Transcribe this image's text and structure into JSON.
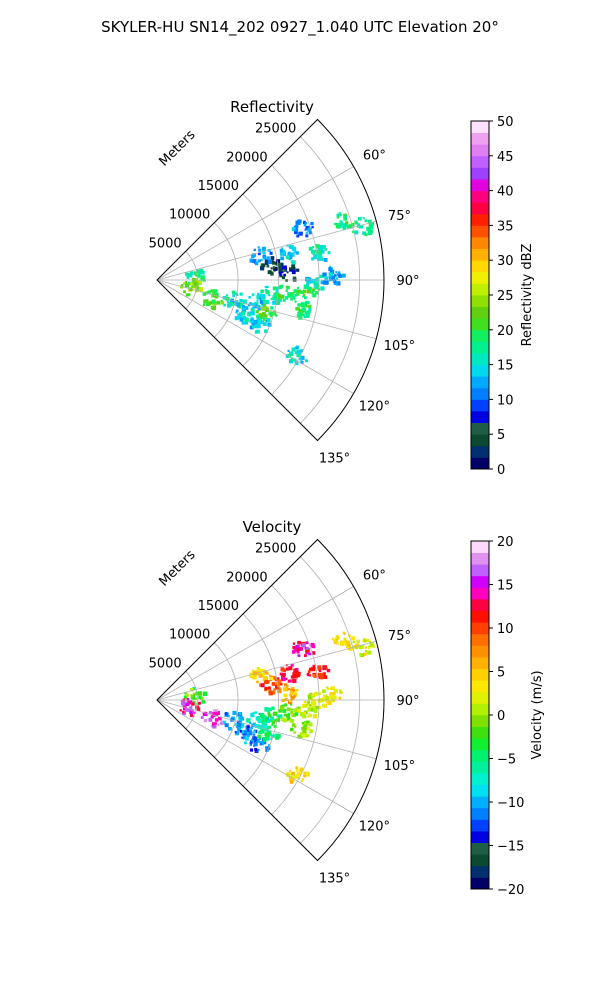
{
  "figure": {
    "title": "SKYLER-HU  SN14_202  0927_1.040 UTC Elevation 20°"
  },
  "chart_data": [
    {
      "type": "heatmap",
      "subtype": "polar-sector",
      "title": "Reflectivity",
      "radial_axis_label": "Meters",
      "r_ticks": [
        5000,
        10000,
        15000,
        20000,
        25000
      ],
      "r_tick_labels": [
        "5000",
        "10000",
        "15000",
        "20000",
        "25000"
      ],
      "r_max": 28000,
      "theta_range_deg": [
        45,
        135
      ],
      "theta_ticks_deg": [
        60,
        75,
        90,
        105,
        120,
        135
      ],
      "theta_tick_labels": [
        "60°",
        "75°",
        "90°",
        "105°",
        "120°",
        "135°"
      ],
      "grid": true,
      "colorbar": {
        "label": "Reflectivity dBZ",
        "range": [
          0,
          50
        ],
        "ticks": [
          0,
          5,
          10,
          15,
          20,
          25,
          30,
          35,
          40,
          45,
          50
        ],
        "tick_labels": [
          "0",
          "5",
          "10",
          "15",
          "20",
          "25",
          "30",
          "35",
          "40",
          "45",
          "50"
        ],
        "colors": [
          "#000066",
          "#003070",
          "#0a4a30",
          "#1e5e46",
          "#0000e0",
          "#0040ff",
          "#0080ff",
          "#00aaff",
          "#00d8f0",
          "#00e8c0",
          "#00f090",
          "#10f060",
          "#40e020",
          "#60d010",
          "#90e000",
          "#c0f000",
          "#eef000",
          "#ffd800",
          "#ffb000",
          "#ff8800",
          "#ff5000",
          "#ff2000",
          "#ff0040",
          "#ff0080",
          "#e000e0",
          "#a040ff",
          "#c060ff",
          "#e080f0",
          "#f0a0f0",
          "#fce0fc"
        ]
      },
      "echoes": [
        {
          "theta_deg": 108,
          "r_m": 7000,
          "value": 21
        },
        {
          "theta_deg": 104,
          "r_m": 9500,
          "value": 16
        },
        {
          "theta_deg": 101,
          "r_m": 12500,
          "value": 14
        },
        {
          "theta_deg": 97,
          "r_m": 14000,
          "value": 17
        },
        {
          "theta_deg": 95,
          "r_m": 16000,
          "value": 19
        },
        {
          "theta_deg": 93,
          "r_m": 18500,
          "value": 20
        },
        {
          "theta_deg": 90,
          "r_m": 19500,
          "value": 14
        },
        {
          "theta_deg": 88,
          "r_m": 21500,
          "value": 13
        },
        {
          "theta_deg": 86,
          "r_m": 16000,
          "value": 6
        },
        {
          "theta_deg": 82,
          "r_m": 14000,
          "value": 4
        },
        {
          "theta_deg": 76,
          "r_m": 13000,
          "value": 12
        },
        {
          "theta_deg": 78,
          "r_m": 16500,
          "value": 15
        },
        {
          "theta_deg": 80,
          "r_m": 20000,
          "value": 16
        },
        {
          "theta_deg": 83,
          "r_m": 4500,
          "value": 18
        },
        {
          "theta_deg": 100,
          "r_m": 4000,
          "value": 24
        },
        {
          "theta_deg": 111,
          "r_m": 11500,
          "value": 15
        },
        {
          "theta_deg": 113,
          "r_m": 13500,
          "value": 13
        },
        {
          "theta_deg": 106,
          "r_m": 14000,
          "value": 21
        },
        {
          "theta_deg": 101,
          "r_m": 18000,
          "value": 18
        },
        {
          "theta_deg": 70,
          "r_m": 19000,
          "value": 12
        },
        {
          "theta_deg": 72,
          "r_m": 24000,
          "value": 18
        },
        {
          "theta_deg": 75,
          "r_m": 26000,
          "value": 18
        },
        {
          "theta_deg": 118,
          "r_m": 19500,
          "value": 15
        }
      ]
    },
    {
      "type": "heatmap",
      "subtype": "polar-sector",
      "title": "Velocity",
      "radial_axis_label": "Meters",
      "r_ticks": [
        5000,
        10000,
        15000,
        20000,
        25000
      ],
      "r_tick_labels": [
        "5000",
        "10000",
        "15000",
        "20000",
        "25000"
      ],
      "r_max": 28000,
      "theta_range_deg": [
        45,
        135
      ],
      "theta_ticks_deg": [
        60,
        75,
        90,
        105,
        120,
        135
      ],
      "theta_tick_labels": [
        "60°",
        "75°",
        "90°",
        "105°",
        "120°",
        "135°"
      ],
      "grid": true,
      "colorbar": {
        "label": "Velocity (m/s)",
        "range": [
          -20,
          20
        ],
        "ticks": [
          -20,
          -15,
          -10,
          -5,
          0,
          5,
          10,
          15,
          20
        ],
        "tick_labels": [
          "−20",
          "−15",
          "−10",
          "−5",
          "0",
          "5",
          "10",
          "15",
          "20"
        ],
        "colors": [
          "#000066",
          "#003070",
          "#0a4a30",
          "#1e5e46",
          "#0000e0",
          "#0040ff",
          "#0080ff",
          "#00b0ff",
          "#00e0f0",
          "#00f0d0",
          "#00f0a0",
          "#00f070",
          "#10f030",
          "#40e010",
          "#80e000",
          "#b0f000",
          "#e0f000",
          "#ffe800",
          "#ffd000",
          "#ffb000",
          "#ff9000",
          "#ff7000",
          "#ff4000",
          "#ff1000",
          "#ff0040",
          "#ff00c0",
          "#d000ff",
          "#c060ff",
          "#e090f0",
          "#fcd8fc"
        ]
      },
      "echoes": [
        {
          "theta_deg": 108,
          "r_m": 7000,
          "value": 16
        },
        {
          "theta_deg": 104,
          "r_m": 9500,
          "value": -10
        },
        {
          "theta_deg": 101,
          "r_m": 12500,
          "value": -8
        },
        {
          "theta_deg": 97,
          "r_m": 14000,
          "value": -4
        },
        {
          "theta_deg": 95,
          "r_m": 16000,
          "value": -1
        },
        {
          "theta_deg": 93,
          "r_m": 18500,
          "value": 1
        },
        {
          "theta_deg": 90,
          "r_m": 19500,
          "value": 2
        },
        {
          "theta_deg": 88,
          "r_m": 21500,
          "value": 3
        },
        {
          "theta_deg": 86,
          "r_m": 16000,
          "value": 6
        },
        {
          "theta_deg": 82,
          "r_m": 14000,
          "value": 10
        },
        {
          "theta_deg": 76,
          "r_m": 13000,
          "value": 4
        },
        {
          "theta_deg": 78,
          "r_m": 16500,
          "value": 12
        },
        {
          "theta_deg": 80,
          "r_m": 20000,
          "value": 11
        },
        {
          "theta_deg": 83,
          "r_m": 4500,
          "value": -2
        },
        {
          "theta_deg": 100,
          "r_m": 4000,
          "value": 15
        },
        {
          "theta_deg": 111,
          "r_m": 11500,
          "value": -11
        },
        {
          "theta_deg": 113,
          "r_m": 13500,
          "value": -12
        },
        {
          "theta_deg": 106,
          "r_m": 14000,
          "value": -6
        },
        {
          "theta_deg": 101,
          "r_m": 18000,
          "value": 0
        },
        {
          "theta_deg": 70,
          "r_m": 19000,
          "value": 14
        },
        {
          "theta_deg": 72,
          "r_m": 24000,
          "value": 4
        },
        {
          "theta_deg": 75,
          "r_m": 26000,
          "value": 2
        },
        {
          "theta_deg": 118,
          "r_m": 19500,
          "value": 4
        }
      ]
    }
  ]
}
